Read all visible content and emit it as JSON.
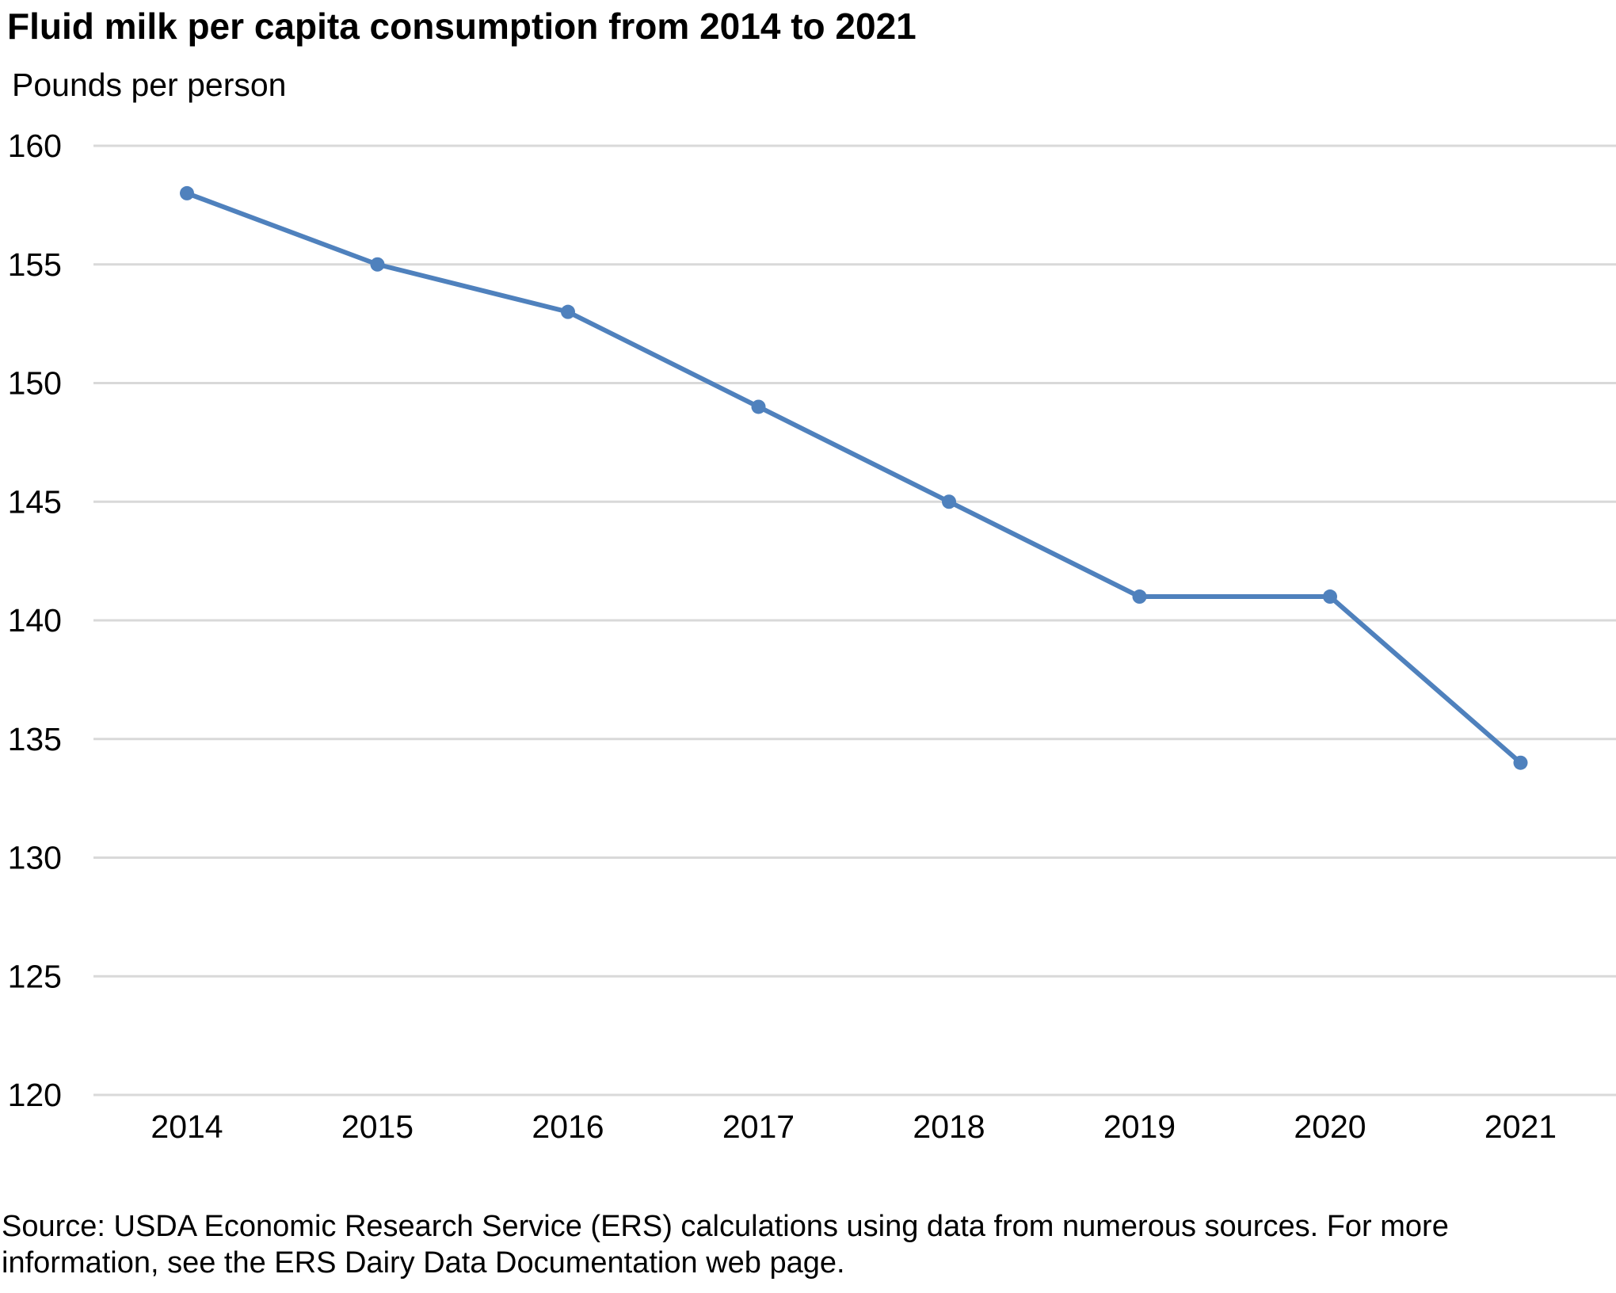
{
  "chart_data": {
    "type": "line",
    "title": "Fluid milk per capita consumption from 2014 to 2021",
    "ylabel": "Pounds per person",
    "xlabel": "",
    "categories": [
      "2014",
      "2015",
      "2016",
      "2017",
      "2018",
      "2019",
      "2020",
      "2021"
    ],
    "series": [
      {
        "name": "Fluid milk per capita consumption",
        "values": [
          158,
          155,
          153,
          149,
          145,
          141,
          141,
          134
        ],
        "color": "#4f81bd"
      }
    ],
    "ylim": [
      120,
      160
    ],
    "yticks": [
      "120",
      "125",
      "130",
      "135",
      "140",
      "145",
      "150",
      "155",
      "160"
    ],
    "grid": true,
    "legend": "none",
    "grid_color": "#d9d9d9"
  },
  "source": "Source: USDA Economic Research Service (ERS) calculations using data from numerous sources. For more information, see the ERS Dairy Data Documentation web page."
}
